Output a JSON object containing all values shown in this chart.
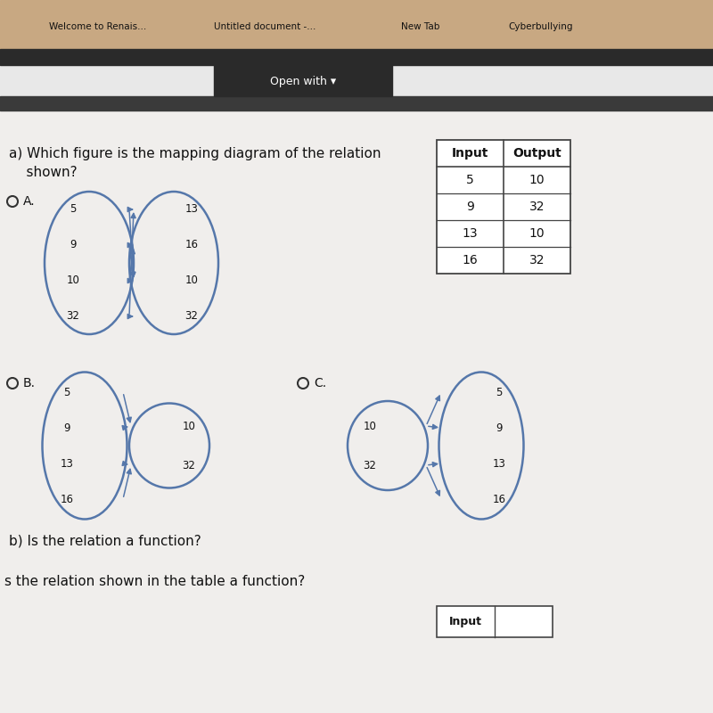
{
  "bg_color_top": "#c8a882",
  "bg_color_main": "#e8e8e8",
  "bg_color_content": "#f0eeec",
  "dark_bar_color": "#2a2a2a",
  "open_with_bg": "#2a2a2a",
  "ellipse_color": "#5577aa",
  "arrow_color": "#5577aa",
  "table_headers": [
    "Input",
    "Output"
  ],
  "table_data": [
    [
      5,
      10
    ],
    [
      9,
      32
    ],
    [
      13,
      10
    ],
    [
      16,
      32
    ]
  ],
  "option_A_left": [
    "5",
    "9",
    "10",
    "32"
  ],
  "option_A_right": [
    "13",
    "16",
    "10",
    "32"
  ],
  "option_B_left": [
    "5",
    "9",
    "13",
    "16"
  ],
  "option_B_right": [
    "10",
    "32"
  ],
  "option_C_left": [
    "10",
    "32"
  ],
  "option_C_right": [
    "5",
    "9",
    "13",
    "16"
  ],
  "browser_tabs": [
    "Welcome to Renais...",
    "Untitled document -...",
    "New Tab",
    "Cyberbullying"
  ],
  "question_a_line1": "a) Which figure is the mapping diagram of the relation",
  "question_a_line2": "    shown?",
  "question_b": "b) Is the relation a function?",
  "question_c": "s the relation shown in the table a function?",
  "open_with_text": "Open with ▾"
}
